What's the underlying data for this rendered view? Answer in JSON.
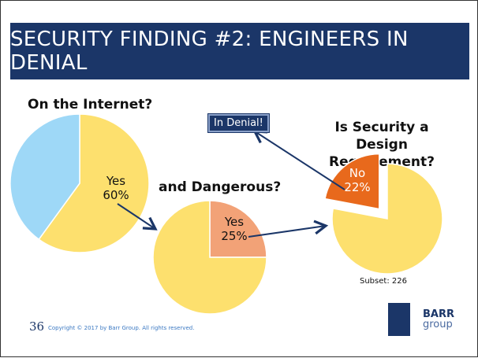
{
  "title": "SECURITY FINDING #2: ENGINEERS IN DENIAL",
  "chart_data": [
    {
      "type": "pie",
      "title": "On the Internet?",
      "slices": [
        {
          "label": "Yes",
          "value": 60,
          "color": "#fde06e"
        },
        {
          "label": "",
          "value": 40,
          "color": "#9ed8f7"
        }
      ],
      "data_label": "Yes\n60%"
    },
    {
      "type": "pie",
      "title": "and Dangerous?",
      "slices": [
        {
          "label": "Yes",
          "value": 25,
          "color": "#f2a277"
        },
        {
          "label": "",
          "value": 75,
          "color": "#fde06e"
        }
      ],
      "data_label": "Yes\n25%"
    },
    {
      "type": "pie",
      "title": "Is Security a Design Requirement?",
      "slices": [
        {
          "label": "No",
          "value": 22,
          "color": "#e8691c",
          "exploded": true
        },
        {
          "label": "",
          "value": 78,
          "color": "#fde06e"
        }
      ],
      "data_label": "No\n22%",
      "note": "Subset: 226"
    }
  ],
  "labels": {
    "q1": "On the Internet?",
    "q2": "and Dangerous?",
    "q3a": "Is Security a Design",
    "q3b": "Requirement?",
    "p1a": "Yes",
    "p1b": "60%",
    "p2a": "Yes",
    "p2b": "25%",
    "p3a": "No",
    "p3b": "22%"
  },
  "callout": "In Denial!",
  "subset": "Subset: 226",
  "footer": {
    "page": "36",
    "copyright": "Copyright © 2017 by Barr Group.  All rights reserved."
  },
  "logo": {
    "line1": "BARR",
    "line2": "group"
  },
  "arrow_color": "#1b3668"
}
